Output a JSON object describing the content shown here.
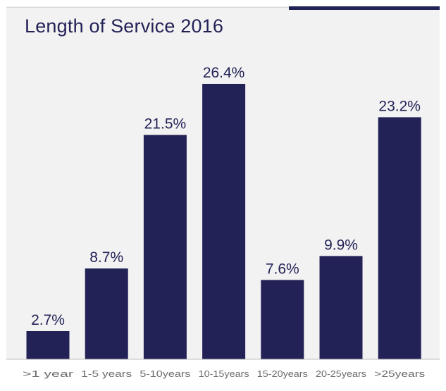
{
  "chart_data": {
    "type": "bar",
    "title": "Length of Service 2016",
    "categories": [
      ">1 year",
      "1-5 years",
      "5-10years",
      "10-15years",
      "15-20years",
      "20-25years",
      ">25years"
    ],
    "values": [
      2.7,
      8.7,
      21.5,
      26.4,
      7.6,
      9.9,
      23.2
    ],
    "data_labels": [
      "2.7%",
      "8.7%",
      "21.5%",
      "26.4%",
      "7.6%",
      "9.9%",
      "23.2%"
    ],
    "xlabel": "",
    "ylabel": "",
    "ylim": [
      0,
      28
    ],
    "grid": false,
    "legend": "none",
    "colors": {
      "bar": "#232257",
      "title": "#232257",
      "label": "#232257",
      "tick": "#6b6b6b",
      "background": "#f2f2f2"
    }
  }
}
